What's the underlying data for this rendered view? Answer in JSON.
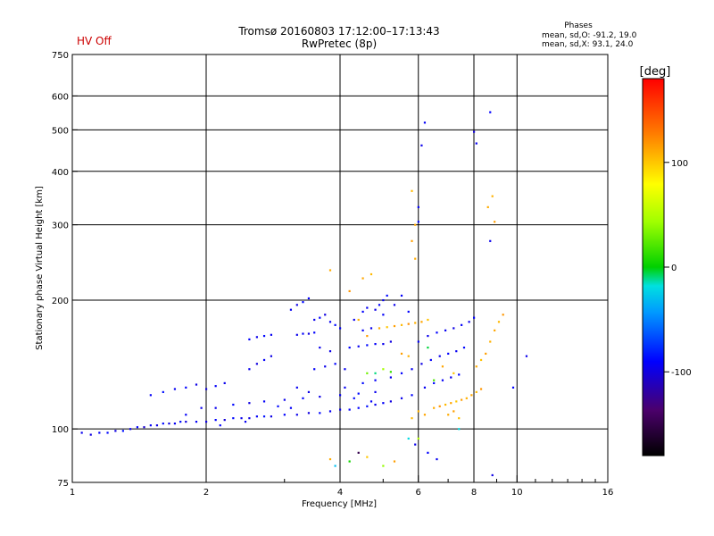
{
  "status_text": "HV Off",
  "colors": {
    "status": "#cc0000",
    "axis": "#000000"
  },
  "chart_data": {
    "type": "scatter",
    "title": "Tromsø 20160803 17:12:00–17:13:43",
    "subtitle": "RwPretec (8p)",
    "xlabel": "Frequency [MHz]",
    "ylabel": "Stationary phase Virtual Height [km]",
    "xscale": "log",
    "yscale": "log",
    "xlim": [
      1,
      16
    ],
    "ylim": [
      75,
      750
    ],
    "x_ticks": [
      1,
      2,
      4,
      6,
      8,
      10,
      16
    ],
    "y_ticks": [
      75,
      100,
      200,
      300,
      400,
      500,
      600,
      750
    ],
    "grid": true,
    "stats": {
      "title": "Phases",
      "line_o": "mean, sd,O: -91.2, 19.0",
      "line_x": "mean, sd,X:  93.1, 24.0"
    },
    "colorbar": {
      "unit": "[deg]",
      "range": [
        -180,
        180
      ],
      "ticks": [
        100,
        0,
        -100
      ],
      "colormap": "rainbow"
    },
    "series": [
      {
        "values": [
          [
            1.05,
            98,
            -95
          ],
          [
            1.1,
            97,
            -100
          ],
          [
            1.15,
            98,
            -92
          ],
          [
            1.2,
            98,
            -88
          ],
          [
            1.25,
            99,
            -100
          ],
          [
            1.3,
            99,
            -85
          ],
          [
            1.35,
            100,
            -96
          ],
          [
            1.4,
            101,
            -90
          ],
          [
            1.45,
            101,
            -105
          ],
          [
            1.5,
            102,
            -92
          ],
          [
            1.55,
            102,
            -98
          ],
          [
            1.6,
            103,
            -88
          ],
          [
            1.65,
            103,
            -100
          ],
          [
            1.7,
            103,
            -94
          ],
          [
            1.75,
            104,
            -86
          ],
          [
            1.8,
            104,
            -100
          ],
          [
            1.9,
            104,
            -92
          ],
          [
            2.0,
            104,
            -98
          ],
          [
            2.1,
            105,
            -90
          ],
          [
            2.2,
            105,
            -102
          ],
          [
            2.3,
            106,
            -88
          ],
          [
            2.4,
            106,
            -96
          ],
          [
            2.5,
            106,
            -100
          ],
          [
            2.6,
            107,
            -92
          ],
          [
            2.7,
            107,
            -85
          ],
          [
            2.8,
            107,
            -98
          ],
          [
            3.0,
            108,
            -90
          ],
          [
            3.2,
            108,
            -96
          ],
          [
            3.4,
            109,
            -100
          ],
          [
            3.6,
            109,
            -88
          ],
          [
            3.8,
            110,
            -94
          ],
          [
            4.0,
            111,
            -98
          ],
          [
            4.2,
            111,
            -92
          ],
          [
            4.4,
            112,
            -90
          ],
          [
            4.6,
            113,
            -86
          ],
          [
            4.8,
            114,
            -95
          ],
          [
            5.0,
            115,
            -92
          ],
          [
            5.2,
            116,
            -100
          ],
          [
            5.5,
            118,
            -96
          ],
          [
            5.8,
            120,
            -90
          ],
          [
            2.1,
            112,
            -95
          ],
          [
            2.3,
            114,
            -88
          ],
          [
            2.5,
            115,
            -100
          ],
          [
            2.7,
            116,
            -92
          ],
          [
            3.0,
            117,
            -96
          ],
          [
            3.3,
            118,
            -90
          ],
          [
            3.6,
            119,
            -98
          ],
          [
            4.0,
            120,
            -94
          ],
          [
            4.4,
            121,
            -88
          ],
          [
            4.8,
            122,
            -95
          ],
          [
            2.0,
            124,
            -100
          ],
          [
            2.1,
            126,
            -92
          ],
          [
            2.2,
            128,
            -96
          ],
          [
            1.8,
            125,
            -90
          ],
          [
            1.9,
            127,
            -98
          ],
          [
            1.7,
            124,
            -94
          ],
          [
            1.6,
            122,
            -86
          ],
          [
            1.5,
            120,
            -92
          ],
          [
            2.5,
            138,
            -95
          ],
          [
            2.6,
            142,
            -100
          ],
          [
            2.7,
            145,
            -92
          ],
          [
            2.8,
            148,
            -98
          ],
          [
            2.5,
            162,
            -90
          ],
          [
            2.6,
            164,
            -96
          ],
          [
            2.7,
            165,
            -88
          ],
          [
            2.8,
            166,
            -94
          ],
          [
            3.2,
            166,
            -96
          ],
          [
            3.3,
            167,
            -92
          ],
          [
            3.4,
            167,
            -100
          ],
          [
            3.5,
            168,
            -90
          ],
          [
            3.1,
            190,
            -94
          ],
          [
            3.2,
            195,
            -98
          ],
          [
            3.3,
            198,
            -88
          ],
          [
            3.4,
            202,
            -92
          ],
          [
            3.5,
            180,
            -96
          ],
          [
            3.6,
            182,
            -90
          ],
          [
            3.7,
            185,
            -100
          ],
          [
            3.8,
            178,
            -94
          ],
          [
            3.9,
            175,
            -88
          ],
          [
            4.0,
            172,
            -92
          ],
          [
            3.6,
            155,
            -96
          ],
          [
            3.8,
            152,
            -98
          ],
          [
            4.2,
            155,
            -90
          ],
          [
            4.4,
            156,
            -94
          ],
          [
            4.6,
            157,
            -88
          ],
          [
            4.8,
            158,
            -92
          ],
          [
            5.0,
            158,
            -96
          ],
          [
            5.2,
            160,
            -100
          ],
          [
            4.5,
            170,
            -92
          ],
          [
            4.7,
            172,
            -96
          ],
          [
            4.9,
            195,
            -90
          ],
          [
            5.0,
            200,
            -94
          ],
          [
            5.1,
            205,
            -88
          ],
          [
            4.8,
            190,
            -98
          ],
          [
            5.0,
            185,
            -92
          ],
          [
            4.3,
            180,
            -96
          ],
          [
            4.5,
            188,
            -90
          ],
          [
            4.6,
            192,
            -94
          ],
          [
            3.5,
            138,
            -92
          ],
          [
            3.7,
            140,
            -96
          ],
          [
            3.9,
            142,
            -90
          ],
          [
            4.1,
            138,
            -94
          ],
          [
            4.5,
            128,
            -88
          ],
          [
            4.8,
            130,
            -92
          ],
          [
            5.2,
            132,
            -96
          ],
          [
            5.5,
            135,
            -90
          ],
          [
            5.8,
            138,
            -94
          ],
          [
            6.1,
            142,
            -98
          ],
          [
            6.4,
            145,
            -92
          ],
          [
            6.7,
            148,
            -96
          ],
          [
            7.0,
            150,
            -90
          ],
          [
            7.3,
            152,
            -94
          ],
          [
            7.6,
            155,
            -88
          ],
          [
            6.0,
            160,
            -92
          ],
          [
            6.3,
            165,
            -96
          ],
          [
            6.6,
            168,
            -90
          ],
          [
            6.9,
            170,
            -94
          ],
          [
            7.2,
            172,
            -98
          ],
          [
            7.5,
            175,
            -92
          ],
          [
            7.8,
            178,
            -96
          ],
          [
            8.0,
            182,
            -90
          ],
          [
            6.2,
            125,
            -94
          ],
          [
            6.5,
            128,
            -88
          ],
          [
            6.8,
            130,
            -92
          ],
          [
            7.1,
            132,
            -96
          ],
          [
            7.4,
            134,
            -90
          ],
          [
            6.1,
            460,
            -96
          ],
          [
            6.2,
            520,
            -92
          ],
          [
            8.0,
            495,
            -100
          ],
          [
            8.1,
            465,
            -94
          ],
          [
            8.7,
            550,
            -90
          ],
          [
            8.7,
            275,
            -96
          ],
          [
            6.0,
            305,
            -88
          ],
          [
            6.0,
            330,
            -92
          ],
          [
            10.5,
            148,
            -96
          ],
          [
            9.8,
            125,
            -90
          ],
          [
            3.2,
            125,
            -94
          ],
          [
            3.4,
            122,
            -98
          ],
          [
            5.5,
            205,
            -92
          ],
          [
            5.3,
            195,
            -96
          ],
          [
            5.7,
            188,
            -90
          ],
          [
            4.1,
            125,
            -94
          ],
          [
            4.3,
            118,
            -88
          ],
          [
            4.7,
            116,
            -92
          ],
          [
            5.9,
            92,
            -96
          ],
          [
            6.3,
            88,
            -90
          ],
          [
            6.6,
            85,
            -94
          ],
          [
            8.8,
            78,
            -98
          ],
          [
            1.8,
            108,
            -92
          ],
          [
            1.95,
            112,
            -96
          ],
          [
            2.15,
            102,
            -90
          ],
          [
            2.45,
            104,
            -94
          ],
          [
            2.9,
            113,
            -88
          ],
          [
            3.1,
            112,
            -92
          ]
        ]
      },
      {
        "values": [
          [
            4.9,
            172,
            110
          ],
          [
            5.1,
            173,
            100
          ],
          [
            5.3,
            174,
            115
          ],
          [
            5.5,
            175,
            105
          ],
          [
            5.7,
            176,
            120
          ],
          [
            5.9,
            177,
            108
          ],
          [
            6.1,
            178,
            112
          ],
          [
            6.3,
            180,
            102
          ],
          [
            6.5,
            112,
            110
          ],
          [
            6.7,
            113,
            118
          ],
          [
            6.9,
            114,
            105
          ],
          [
            7.1,
            115,
            112
          ],
          [
            7.3,
            116,
            100
          ],
          [
            7.5,
            117,
            115
          ],
          [
            7.7,
            118,
            108
          ],
          [
            7.9,
            120,
            112
          ],
          [
            8.1,
            122,
            105
          ],
          [
            8.3,
            124,
            118
          ],
          [
            8.1,
            140,
            110
          ],
          [
            8.3,
            145,
            102
          ],
          [
            8.5,
            150,
            115
          ],
          [
            8.7,
            160,
            108
          ],
          [
            8.9,
            170,
            112
          ],
          [
            9.1,
            178,
            105
          ],
          [
            9.3,
            185,
            118
          ],
          [
            7.0,
            108,
            110
          ],
          [
            7.2,
            110,
            115
          ],
          [
            7.4,
            106,
            102
          ],
          [
            6.0,
            110,
            108
          ],
          [
            6.2,
            108,
            112
          ],
          [
            5.8,
            106,
            105
          ],
          [
            5.5,
            150,
            115
          ],
          [
            5.7,
            148,
            108
          ],
          [
            6.8,
            140,
            112
          ],
          [
            7.2,
            135,
            100
          ],
          [
            5.9,
            250,
            110
          ],
          [
            5.8,
            275,
            115
          ],
          [
            5.8,
            360,
            105
          ],
          [
            5.9,
            300,
            112
          ],
          [
            8.8,
            350,
            108
          ],
          [
            8.9,
            305,
            115
          ],
          [
            8.6,
            330,
            110
          ],
          [
            4.5,
            225,
            112
          ],
          [
            4.7,
            230,
            105
          ],
          [
            4.2,
            210,
            118
          ],
          [
            3.8,
            235,
            110
          ],
          [
            4.4,
            180,
            108
          ],
          [
            4.6,
            165,
            115
          ],
          [
            4.4,
            88,
            -150
          ],
          [
            4.6,
            86,
            100
          ],
          [
            3.8,
            85,
            110
          ],
          [
            3.9,
            82,
            -30
          ],
          [
            5.0,
            82,
            40
          ],
          [
            4.2,
            84,
            5
          ],
          [
            5.3,
            84,
            115
          ],
          [
            5.7,
            95,
            -20
          ],
          [
            6.0,
            95,
            50
          ],
          [
            6.3,
            155,
            -5
          ],
          [
            6.5,
            130,
            20
          ],
          [
            4.6,
            135,
            30
          ],
          [
            4.8,
            135,
            -10
          ],
          [
            5.0,
            138,
            45
          ],
          [
            5.2,
            136,
            15
          ],
          [
            7.4,
            100,
            -20
          ]
        ]
      }
    ]
  }
}
